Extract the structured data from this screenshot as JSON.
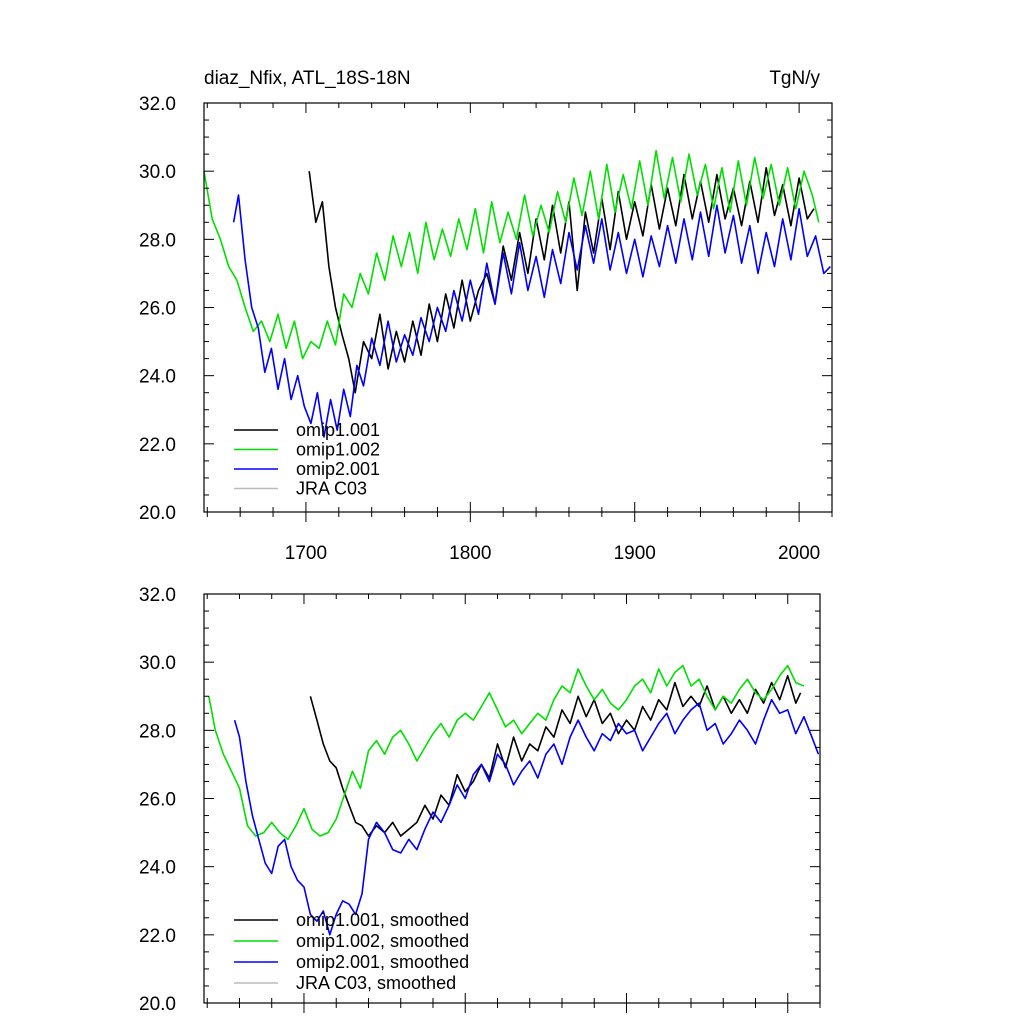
{
  "chart_data": [
    {
      "type": "line",
      "title": "diaz_Nfix, ATL_18S-18N",
      "units": "TgN/y",
      "xlim": [
        1638,
        2020
      ],
      "ylim": [
        20,
        32
      ],
      "xticks": [
        1700,
        1800,
        1900,
        2000
      ],
      "xtick_labels": [
        "1700",
        "1800",
        "1900",
        "2000"
      ],
      "yticks": [
        20,
        22,
        24,
        26,
        28,
        30,
        32
      ],
      "ytick_labels": [
        "20.0",
        "22.0",
        "24.0",
        "26.0",
        "28.0",
        "30.0",
        "32.0"
      ],
      "legend": [
        "omip1.001",
        "omip1.002",
        "omip2.001",
        "JRA C03"
      ],
      "series": [
        {
          "name": "omip1.001",
          "color": "#000000",
          "x": [
            1702,
            1706,
            1710,
            1714,
            1718,
            1722,
            1726,
            1730,
            1735,
            1740,
            1745,
            1750,
            1755,
            1760,
            1765,
            1770,
            1775,
            1780,
            1785,
            1790,
            1795,
            1800,
            1805,
            1810,
            1815,
            1820,
            1825,
            1830,
            1835,
            1840,
            1845,
            1850,
            1855,
            1860,
            1865,
            1870,
            1875,
            1880,
            1885,
            1890,
            1895,
            1900,
            1905,
            1910,
            1915,
            1920,
            1925,
            1930,
            1935,
            1940,
            1945,
            1950,
            1955,
            1960,
            1965,
            1970,
            1975,
            1980,
            1985,
            1990,
            1995,
            2000,
            2005,
            2009
          ],
          "values": [
            30.0,
            28.5,
            29.1,
            27.2,
            26.0,
            25.2,
            24.5,
            23.5,
            25.0,
            24.5,
            25.8,
            24.2,
            25.3,
            24.4,
            25.6,
            24.6,
            26.1,
            25.0,
            26.4,
            25.4,
            26.8,
            25.6,
            26.5,
            27.0,
            26.1,
            27.8,
            26.8,
            28.2,
            27.0,
            28.6,
            27.4,
            29.0,
            27.6,
            29.1,
            26.5,
            28.8,
            27.6,
            29.2,
            27.7,
            29.4,
            28.0,
            29.1,
            28.1,
            29.6,
            28.3,
            29.5,
            28.4,
            29.9,
            28.6,
            29.7,
            28.5,
            29.9,
            28.6,
            29.5,
            28.4,
            29.7,
            28.5,
            30.1,
            28.7,
            29.6,
            28.4,
            29.8,
            28.6,
            28.9
          ]
        },
        {
          "name": "omip1.002",
          "color": "#00e000",
          "x": [
            1638,
            1643,
            1648,
            1653,
            1658,
            1663,
            1668,
            1673,
            1678,
            1683,
            1688,
            1693,
            1698,
            1703,
            1708,
            1713,
            1718,
            1723,
            1728,
            1733,
            1738,
            1743,
            1748,
            1753,
            1758,
            1763,
            1768,
            1773,
            1778,
            1783,
            1788,
            1793,
            1798,
            1803,
            1808,
            1813,
            1818,
            1823,
            1828,
            1833,
            1838,
            1843,
            1848,
            1853,
            1858,
            1863,
            1868,
            1873,
            1878,
            1883,
            1888,
            1893,
            1898,
            1903,
            1908,
            1913,
            1918,
            1923,
            1928,
            1933,
            1938,
            1943,
            1948,
            1953,
            1958,
            1963,
            1968,
            1973,
            1978,
            1983,
            1988,
            1993,
            1998,
            2003,
            2008,
            2012
          ],
          "values": [
            30.0,
            28.6,
            28.0,
            27.2,
            26.8,
            26.0,
            25.3,
            25.6,
            25.0,
            25.8,
            24.8,
            25.6,
            24.5,
            25.0,
            24.8,
            25.6,
            24.9,
            26.4,
            26.0,
            27.0,
            26.4,
            27.6,
            26.8,
            28.1,
            27.2,
            28.2,
            27.0,
            28.5,
            27.4,
            28.3,
            27.5,
            28.6,
            27.7,
            28.9,
            27.6,
            29.1,
            27.9,
            28.8,
            28.0,
            29.3,
            28.1,
            29.0,
            28.2,
            29.4,
            28.5,
            29.8,
            28.7,
            30.0,
            28.6,
            30.2,
            28.8,
            29.9,
            28.9,
            30.3,
            29.0,
            30.6,
            29.2,
            30.4,
            29.1,
            30.5,
            29.3,
            30.2,
            28.9,
            30.1,
            28.8,
            30.3,
            29.0,
            30.4,
            29.2,
            30.2,
            29.0,
            30.1,
            28.9,
            30.0,
            29.3,
            28.5
          ]
        },
        {
          "name": "omip2.001",
          "color": "#0000ff",
          "x": [
            1656,
            1659,
            1663,
            1667,
            1671,
            1675,
            1679,
            1683,
            1687,
            1691,
            1695,
            1699,
            1703,
            1707,
            1711,
            1715,
            1719,
            1723,
            1727,
            1731,
            1735,
            1740,
            1745,
            1750,
            1755,
            1760,
            1765,
            1770,
            1775,
            1780,
            1785,
            1790,
            1795,
            1800,
            1805,
            1810,
            1815,
            1820,
            1825,
            1830,
            1835,
            1840,
            1845,
            1850,
            1855,
            1860,
            1865,
            1870,
            1875,
            1880,
            1885,
            1890,
            1895,
            1900,
            1905,
            1910,
            1915,
            1920,
            1925,
            1930,
            1935,
            1940,
            1945,
            1950,
            1955,
            1960,
            1965,
            1970,
            1975,
            1980,
            1985,
            1990,
            1995,
            2000,
            2005,
            2010,
            2015,
            2019
          ],
          "values": [
            28.5,
            29.3,
            27.4,
            26.0,
            25.4,
            24.1,
            24.8,
            23.6,
            24.5,
            23.3,
            24.0,
            23.1,
            22.6,
            23.5,
            22.2,
            23.3,
            22.4,
            23.6,
            22.8,
            24.3,
            23.7,
            25.1,
            24.3,
            25.6,
            24.4,
            25.2,
            24.6,
            25.7,
            25.0,
            26.0,
            25.3,
            26.5,
            25.6,
            26.8,
            25.8,
            27.3,
            26.1,
            27.6,
            26.4,
            27.9,
            26.5,
            27.5,
            26.3,
            27.7,
            26.7,
            28.2,
            27.1,
            28.4,
            27.3,
            28.6,
            27.1,
            28.2,
            27.0,
            28.0,
            26.9,
            28.1,
            27.2,
            28.4,
            27.3,
            28.6,
            27.4,
            28.8,
            27.5,
            29.0,
            27.6,
            28.7,
            27.3,
            28.4,
            27.0,
            28.2,
            27.2,
            28.6,
            27.4,
            28.9,
            27.5,
            28.1,
            27.0,
            27.2
          ]
        },
        {
          "name": "JRA C03",
          "color": "#bbbbbb",
          "x": [],
          "values": []
        }
      ]
    },
    {
      "type": "line",
      "title": "",
      "units": "",
      "xlim": [
        1638,
        2020
      ],
      "ylim": [
        20,
        32
      ],
      "xticks": [
        1700,
        1800,
        1900,
        2000
      ],
      "xtick_labels": [],
      "yticks": [
        20,
        22,
        24,
        26,
        28,
        30,
        32
      ],
      "ytick_labels": [
        "20.0",
        "22.0",
        "24.0",
        "26.0",
        "28.0",
        "30.0",
        "32.0"
      ],
      "legend": [
        "omip1.001, smoothed",
        "omip1.002, smoothed",
        "omip2.001, smoothed",
        "JRA C03, smoothed"
      ],
      "series": [
        {
          "name": "omip1.001, smoothed",
          "color": "#000000",
          "x": [
            1704,
            1708,
            1712,
            1716,
            1720,
            1724,
            1728,
            1732,
            1736,
            1740,
            1745,
            1750,
            1755,
            1760,
            1765,
            1770,
            1775,
            1780,
            1785,
            1790,
            1795,
            1800,
            1805,
            1810,
            1815,
            1820,
            1825,
            1830,
            1835,
            1840,
            1845,
            1850,
            1855,
            1860,
            1865,
            1870,
            1875,
            1880,
            1885,
            1890,
            1895,
            1900,
            1905,
            1910,
            1915,
            1920,
            1925,
            1930,
            1935,
            1940,
            1945,
            1950,
            1955,
            1960,
            1965,
            1970,
            1975,
            1980,
            1985,
            1990,
            1995,
            2000,
            2005,
            2008
          ],
          "values": [
            29.0,
            28.3,
            27.6,
            27.1,
            26.9,
            26.3,
            25.8,
            25.3,
            25.2,
            24.9,
            25.2,
            25.0,
            25.3,
            24.9,
            25.1,
            25.3,
            25.8,
            25.4,
            26.1,
            25.8,
            26.7,
            26.2,
            26.5,
            27.0,
            26.6,
            27.6,
            26.9,
            27.8,
            27.1,
            27.6,
            27.4,
            28.1,
            27.8,
            28.6,
            28.2,
            29.0,
            28.4,
            28.9,
            28.2,
            28.5,
            27.9,
            28.3,
            28.0,
            28.7,
            28.3,
            28.9,
            28.6,
            29.4,
            28.7,
            29.0,
            28.7,
            29.3,
            28.6,
            29.0,
            28.5,
            28.9,
            28.5,
            29.2,
            28.8,
            29.4,
            28.9,
            29.6,
            28.8,
            29.1
          ]
        },
        {
          "name": "omip1.002, smoothed",
          "color": "#00e000",
          "x": [
            1641,
            1645,
            1650,
            1655,
            1660,
            1665,
            1670,
            1675,
            1680,
            1685,
            1690,
            1695,
            1700,
            1705,
            1710,
            1715,
            1720,
            1725,
            1730,
            1735,
            1740,
            1745,
            1750,
            1755,
            1760,
            1765,
            1770,
            1775,
            1780,
            1785,
            1790,
            1795,
            1800,
            1805,
            1810,
            1815,
            1820,
            1825,
            1830,
            1835,
            1840,
            1845,
            1850,
            1855,
            1860,
            1865,
            1870,
            1875,
            1880,
            1885,
            1890,
            1895,
            1900,
            1905,
            1910,
            1915,
            1920,
            1925,
            1930,
            1935,
            1940,
            1945,
            1950,
            1955,
            1960,
            1965,
            1970,
            1975,
            1980,
            1985,
            1990,
            1995,
            2000,
            2005,
            2010
          ],
          "values": [
            29.0,
            28.0,
            27.3,
            26.8,
            26.3,
            25.2,
            24.9,
            25.0,
            25.3,
            25.0,
            24.8,
            25.2,
            25.7,
            25.1,
            24.9,
            25.0,
            25.4,
            26.1,
            26.8,
            26.3,
            27.4,
            27.7,
            27.3,
            27.8,
            28.0,
            27.6,
            27.1,
            27.5,
            27.9,
            28.2,
            27.8,
            28.3,
            28.5,
            28.3,
            28.7,
            29.1,
            28.6,
            28.1,
            28.3,
            27.9,
            28.2,
            28.5,
            28.3,
            28.9,
            29.3,
            29.1,
            29.8,
            29.3,
            28.9,
            29.2,
            28.8,
            28.6,
            28.9,
            29.3,
            29.5,
            29.1,
            29.8,
            29.3,
            29.7,
            29.9,
            29.3,
            29.5,
            29.0,
            28.6,
            29.0,
            28.8,
            29.2,
            29.5,
            29.1,
            28.9,
            29.2,
            29.6,
            29.9,
            29.4,
            29.3
          ]
        },
        {
          "name": "omip2.001, smoothed",
          "color": "#0000ff",
          "x": [
            1657,
            1660,
            1664,
            1668,
            1672,
            1676,
            1680,
            1684,
            1688,
            1692,
            1696,
            1700,
            1704,
            1708,
            1712,
            1716,
            1720,
            1724,
            1728,
            1732,
            1736,
            1740,
            1745,
            1750,
            1755,
            1760,
            1765,
            1770,
            1775,
            1780,
            1785,
            1790,
            1795,
            1800,
            1805,
            1810,
            1815,
            1820,
            1825,
            1830,
            1835,
            1840,
            1845,
            1850,
            1855,
            1860,
            1865,
            1870,
            1875,
            1880,
            1885,
            1890,
            1895,
            1900,
            1905,
            1910,
            1915,
            1920,
            1925,
            1930,
            1935,
            1940,
            1945,
            1950,
            1955,
            1960,
            1965,
            1970,
            1975,
            1980,
            1985,
            1990,
            1995,
            2000,
            2005,
            2010,
            2015,
            2019
          ],
          "values": [
            28.3,
            27.8,
            26.5,
            25.5,
            24.8,
            24.1,
            23.8,
            24.6,
            24.8,
            24.0,
            23.6,
            23.4,
            22.6,
            22.4,
            22.7,
            22.0,
            22.6,
            23.0,
            22.9,
            22.6,
            23.2,
            24.8,
            25.3,
            25.0,
            24.5,
            24.4,
            24.8,
            24.5,
            25.1,
            25.6,
            25.3,
            25.8,
            26.4,
            26.0,
            26.7,
            27.0,
            26.5,
            27.3,
            27.0,
            26.4,
            26.8,
            27.1,
            26.6,
            27.3,
            27.6,
            27.0,
            27.8,
            28.3,
            27.8,
            27.4,
            27.9,
            27.7,
            28.2,
            27.9,
            28.0,
            27.4,
            27.8,
            28.2,
            28.5,
            27.9,
            28.3,
            28.6,
            28.8,
            28.0,
            28.2,
            27.6,
            27.9,
            28.3,
            28.0,
            27.6,
            28.3,
            28.9,
            28.5,
            28.6,
            27.9,
            28.4,
            27.8,
            27.3
          ]
        },
        {
          "name": "JRA C03, smoothed",
          "color": "#bbbbbb",
          "x": [],
          "values": []
        }
      ]
    }
  ]
}
